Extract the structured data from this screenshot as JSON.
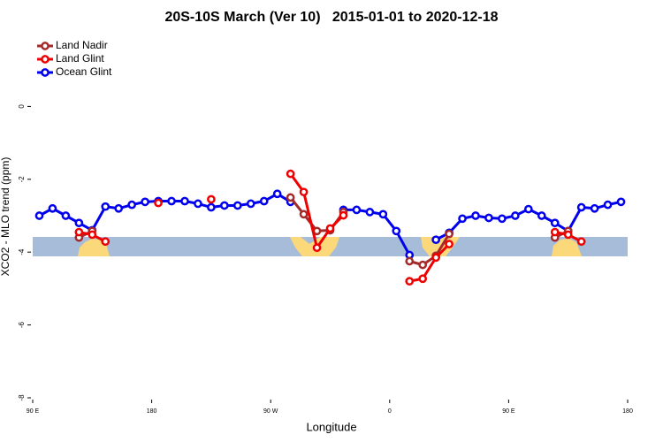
{
  "chart_data": {
    "type": "line",
    "title": "20S-10S March (Ver 10)   2015-01-01 to 2020-12-18",
    "x_label": "Longitude",
    "y_label": "XCO2 - MLO trend (ppm)",
    "xlim": [
      90,
      540
    ],
    "xticks": [
      {
        "value": 90,
        "label": "90 E"
      },
      180,
      {
        "value": 270,
        "label": "90 W"
      },
      {
        "value": 360,
        "label": "0"
      },
      {
        "value": 450,
        "label": "90 E"
      },
      {
        "value": 540,
        "label": "180"
      }
    ],
    "ylim": [
      -8,
      2
    ],
    "yticks": [
      0,
      -2,
      -4,
      -6,
      -8
    ],
    "legend": "top-left",
    "x": [
      95,
      105,
      115,
      125,
      135,
      145,
      155,
      165,
      175,
      185,
      195,
      205,
      215,
      225,
      235,
      245,
      255,
      265,
      275,
      285,
      295,
      305,
      315,
      325,
      335,
      345,
      355,
      365,
      375,
      385,
      395,
      405,
      415,
      425,
      435,
      445,
      455,
      465,
      475,
      485,
      495,
      505,
      515,
      525,
      535
    ],
    "series": [
      {
        "name": "Land Nadir",
        "color": "#a52a2a",
        "values": [
          null,
          null,
          null,
          -3.6,
          -3.42,
          null,
          null,
          null,
          null,
          null,
          null,
          null,
          null,
          null,
          null,
          null,
          null,
          null,
          null,
          -2.5,
          -2.96,
          -3.42,
          -3.4,
          -2.9,
          null,
          null,
          null,
          null,
          -4.25,
          -4.35,
          -4.1,
          -3.5,
          null,
          null,
          null,
          null,
          null,
          null,
          null,
          -3.6,
          -3.42,
          null,
          null,
          null,
          null
        ]
      },
      {
        "name": "Land Glint",
        "color": "#ee0000",
        "values": [
          null,
          null,
          null,
          -3.45,
          -3.52,
          -3.71,
          null,
          null,
          null,
          -2.65,
          null,
          null,
          null,
          -2.55,
          null,
          null,
          null,
          null,
          null,
          -1.85,
          -2.35,
          -3.88,
          -3.35,
          -2.99,
          null,
          null,
          null,
          null,
          -4.8,
          -4.73,
          -4.15,
          -3.78,
          null,
          null,
          null,
          null,
          null,
          null,
          null,
          -3.45,
          -3.52,
          -3.71,
          null,
          null,
          null
        ]
      },
      {
        "name": "Ocean Glint",
        "color": "#0000ee",
        "values": [
          -3.0,
          -2.8,
          -3.0,
          -3.2,
          -3.4,
          -2.75,
          -2.8,
          -2.7,
          -2.62,
          -2.6,
          -2.6,
          -2.6,
          -2.67,
          -2.77,
          -2.72,
          -2.72,
          -2.67,
          -2.6,
          -2.4,
          -2.62,
          null,
          null,
          null,
          -2.84,
          -2.84,
          -2.9,
          -2.96,
          -3.42,
          -4.08,
          null,
          -3.66,
          -3.47,
          -3.08,
          -3.0,
          -3.06,
          -3.08,
          -3.0,
          -2.82,
          -3.0,
          -3.2,
          -3.42,
          -2.77,
          -2.8,
          -2.7,
          -2.62
        ]
      }
    ]
  }
}
